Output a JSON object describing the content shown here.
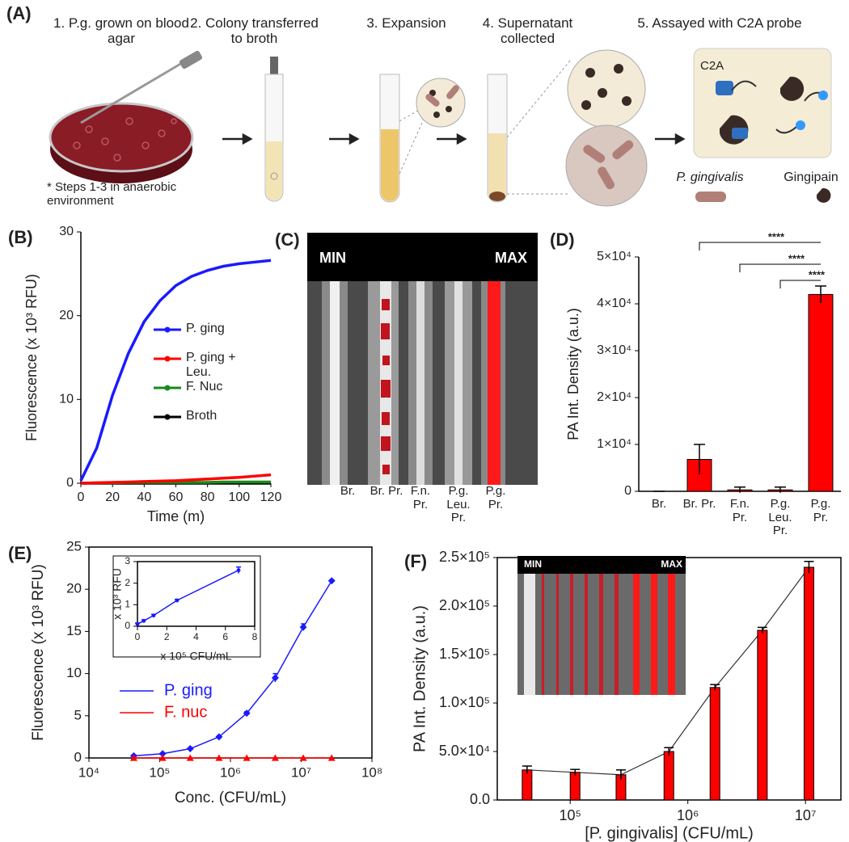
{
  "panel_a": {
    "label": "(A)",
    "steps": [
      "1. P.g. grown on blood agar",
      "2. Colony transferred to broth",
      "3. Expansion",
      "4. Supernatant collected",
      "5. Assayed with C2A probe"
    ],
    "note": "* Steps 1-3 in anaerobic environment",
    "legend": {
      "probe": "C2A",
      "bacterium": "P. gingivalis",
      "enzyme": "Gingipain"
    }
  },
  "panel_c": {
    "label": "(C)",
    "min": "MIN",
    "max": "MAX",
    "lanes": [
      "Br.",
      "Br. Pr.",
      "F.n. Pr.",
      "P.g. Leu. Pr.",
      "P.g. Pr."
    ]
  },
  "chart_data": [
    {
      "type": "line",
      "panel": "(B)",
      "xlabel": "Time (m)",
      "ylabel": "Fluorescence (x 10³ RFU)",
      "x": [
        0,
        10,
        20,
        30,
        40,
        50,
        60,
        70,
        80,
        90,
        100,
        110,
        120
      ],
      "series": [
        {
          "name": "Broth",
          "color": "#000000",
          "values": [
            0,
            0,
            0,
            0,
            0,
            0,
            0,
            0,
            0,
            0,
            0,
            0,
            0
          ]
        },
        {
          "name": "F. Nuc",
          "color": "#1a8a1a",
          "values": [
            0,
            0.05,
            0.05,
            0.1,
            0.1,
            0.1,
            0.1,
            0.1,
            0.1,
            0.15,
            0.15,
            0.15,
            0.15
          ]
        },
        {
          "name": "P. ging + Leu.",
          "color": "#ff0000",
          "values": [
            0,
            0.05,
            0.1,
            0.15,
            0.2,
            0.25,
            0.3,
            0.4,
            0.5,
            0.6,
            0.7,
            0.85,
            1.0
          ]
        },
        {
          "name": "P. ging",
          "color": "#1a1aff",
          "values": [
            0.3,
            4.2,
            10.5,
            15.5,
            19.3,
            21.8,
            23.6,
            24.7,
            25.4,
            25.9,
            26.2,
            26.4,
            26.6
          ]
        }
      ],
      "xlim": [
        0,
        120
      ],
      "xticks": [
        0,
        20,
        40,
        60,
        80,
        100,
        120
      ],
      "ylim": [
        0,
        30
      ],
      "yticks": [
        0,
        10,
        20,
        30
      ],
      "legend": "right"
    },
    {
      "type": "bar",
      "panel": "(D)",
      "ylabel": "PA Int. Density (a.u.)",
      "color": "#ff0000",
      "categories": [
        "Br.",
        "Br. Pr.",
        "F.n. Pr.",
        "P.g. Leu. Pr.",
        "P.g. Pr."
      ],
      "values": [
        0,
        6800,
        300,
        300,
        42000
      ],
      "errors": [
        0,
        3200,
        600,
        600,
        1800
      ],
      "ylim": [
        0,
        50000
      ],
      "yticks": [
        0,
        {
          "value": 10000,
          "label": "1×10⁴"
        },
        {
          "value": 20000,
          "label": "2×10⁴"
        },
        {
          "value": 30000,
          "label": "3×10⁴"
        },
        {
          "value": 40000,
          "label": "4×10⁴"
        },
        {
          "value": 50000,
          "label": "5×10⁴"
        }
      ],
      "significance": [
        {
          "from": 1,
          "to": 4,
          "label": "****"
        },
        {
          "from": 2,
          "to": 4,
          "label": "****"
        },
        {
          "from": 3,
          "to": 4,
          "label": "****"
        }
      ]
    },
    {
      "type": "scatter-line",
      "panel": "(E)",
      "xlabel": "Conc. (CFU/mL)",
      "ylabel": "Fluorescence (x 10³ RFU)",
      "xscale": "log",
      "x": [
        43000,
        110000,
        270000,
        690000,
        1700000,
        4300000,
        10700000,
        27000000
      ],
      "series": [
        {
          "name": "P. ging",
          "color": "#1a1aff",
          "marker": "diamond",
          "values": [
            0.25,
            0.5,
            1.1,
            2.5,
            5.3,
            9.5,
            15.5,
            21
          ],
          "errors": [
            0.1,
            0.1,
            0.1,
            0.1,
            0.2,
            0.5,
            0.4,
            0.1
          ]
        },
        {
          "name": "F. nuc",
          "color": "#ff0000",
          "marker": "triangle",
          "values": [
            0,
            0,
            0,
            0,
            0,
            0,
            0,
            0
          ]
        }
      ],
      "xlim": [
        10000,
        100000000
      ],
      "xticks": [
        {
          "value": 10000,
          "label": "10⁴"
        },
        {
          "value": 100000,
          "label": "10⁵"
        },
        {
          "value": 1000000,
          "label": "10⁶"
        },
        {
          "value": 10000000,
          "label": "10⁷"
        },
        {
          "value": 100000000,
          "label": "10⁸"
        }
      ],
      "ylim": [
        0,
        25
      ],
      "yticks": [
        0,
        5,
        10,
        15,
        20,
        25
      ]
    },
    {
      "type": "scatter-line",
      "xlabel": "x 10⁵ CFU/mL",
      "ylabel": "x 10³ RFU",
      "x": [
        0,
        0.43,
        1.1,
        2.7,
        6.9
      ],
      "series": [
        {
          "color": "#1a1aff",
          "marker": "circle",
          "values": [
            0.1,
            0.25,
            0.5,
            1.2,
            2.6
          ],
          "errors": [
            0.05,
            0.05,
            0.05,
            0.05,
            0.15
          ]
        }
      ],
      "xlim": [
        0,
        8
      ],
      "xticks": [
        0,
        2,
        4,
        6,
        8
      ],
      "ylim": [
        0,
        3
      ],
      "yticks": [
        0,
        1,
        2,
        3
      ]
    },
    {
      "type": "bar-log",
      "panel": "(F)",
      "xlabel": "[P. gingivalis] (CFU/mL)",
      "ylabel": "PA Int. Density (a.u.)",
      "xscale": "log",
      "color": "#ff0000",
      "x": [
        43000,
        110000,
        270000,
        690000,
        1700000,
        4300000,
        10700000
      ],
      "values": [
        31000,
        28500,
        26000,
        50000,
        116000,
        175000,
        240000
      ],
      "errors": [
        4000,
        3000,
        5000,
        4000,
        3000,
        3000,
        6000
      ],
      "xlim": [
        24000,
        20000000
      ],
      "xticks": [
        {
          "value": 100000,
          "label": "10⁵"
        },
        {
          "value": 1000000,
          "label": "10⁶"
        },
        {
          "value": 10000000,
          "label": "10⁷"
        }
      ],
      "ylim": [
        0,
        250000
      ],
      "yticks": [
        {
          "value": 0,
          "label": "0.0"
        },
        {
          "value": 50000,
          "label": "5.0×10⁴"
        },
        {
          "value": 100000,
          "label": "1.0×10⁵"
        },
        {
          "value": 150000,
          "label": "1.5×10⁵"
        },
        {
          "value": 200000,
          "label": "2.0×10⁵"
        },
        {
          "value": 250000,
          "label": "2.5×10⁵"
        }
      ],
      "inset": {
        "min": "MIN",
        "max": "MAX"
      }
    }
  ]
}
